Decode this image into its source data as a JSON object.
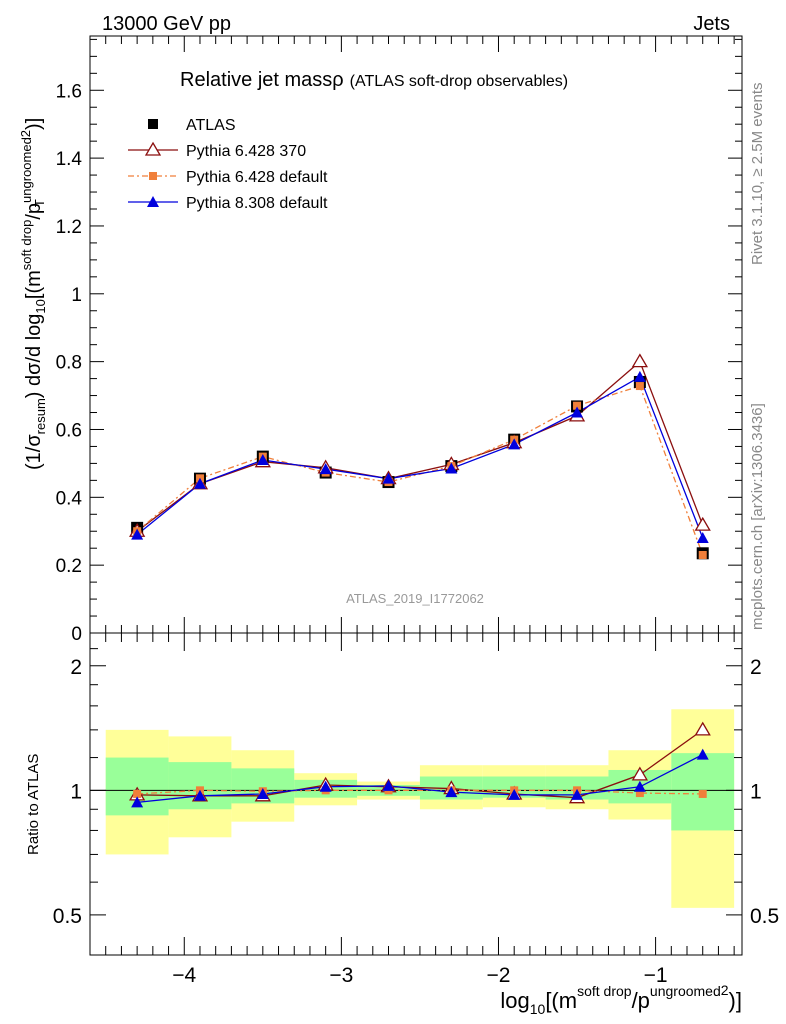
{
  "header": {
    "left": "13000 GeV pp",
    "right": "Jets"
  },
  "side_labels": {
    "rivet": "Rivet 3.1.10, ≥ 2.5M events",
    "mcplots": "mcplots.cern.ch [arXiv:1306.3436]"
  },
  "analysis_id": "ATLAS_2019_I1772062",
  "colors": {
    "atlas": "#000000",
    "py6_370": "#8b0f0f",
    "py6_default": "#f07f3a",
    "py8": "#0000dd",
    "band_yellow": "#ffff99",
    "band_green": "#99ff99"
  },
  "chart_data": [
    {
      "type": "line",
      "title": "Relative jet massρ",
      "subtitle": "(ATLAS soft-drop observables)",
      "ylabel": "(1/σresum) dσ/d log10[(m soft drop/pT ungroomed)2]",
      "xlim": [
        -4.6,
        -0.45
      ],
      "ylim": [
        0,
        1.76
      ],
      "x_ticks": [
        -4,
        -3,
        -2,
        -1
      ],
      "y_ticks": [
        0,
        0.2,
        0.4,
        0.6,
        0.8,
        1,
        1.2,
        1.4,
        1.6
      ],
      "y_tick_labels": [
        "0",
        "0.2",
        "0.4",
        "0.6",
        "0.8",
        "1",
        "1.2",
        "1.4",
        "1.6"
      ],
      "x": [
        -4.3,
        -3.9,
        -3.5,
        -3.1,
        -2.7,
        -2.3,
        -1.9,
        -1.5,
        -1.1,
        -0.7
      ],
      "legend_position": "top-left",
      "series": [
        {
          "name": "ATLAS",
          "values": [
            0.31,
            0.455,
            0.52,
            0.473,
            0.445,
            0.492,
            0.57,
            0.668,
            0.74,
            0.235
          ]
        },
        {
          "name": "Pythia 6.428 370",
          "values": [
            0.3,
            0.44,
            0.505,
            0.487,
            0.455,
            0.497,
            0.561,
            0.64,
            0.8,
            0.318
          ]
        },
        {
          "name": "Pythia 6.428 default",
          "values": [
            0.3,
            0.456,
            0.52,
            0.473,
            0.445,
            0.492,
            0.57,
            0.67,
            0.728,
            0.23
          ]
        },
        {
          "name": "Pythia 8.308 default",
          "values": [
            0.29,
            0.44,
            0.51,
            0.483,
            0.455,
            0.485,
            0.556,
            0.65,
            0.755,
            0.28
          ]
        }
      ]
    },
    {
      "type": "line",
      "ylabel": "Ratio to ATLAS",
      "xlabel": "log10[(m soft drop/pT ungroomed)2]",
      "xlim": [
        -4.6,
        -0.45
      ],
      "ylim": [
        0.4,
        2.4
      ],
      "y_scale": "log",
      "x_ticks": [
        -4,
        -3,
        -2,
        -1
      ],
      "x_tick_labels": [
        "−4",
        "−3",
        "−2",
        "−1"
      ],
      "y_ticks": [
        0.5,
        1,
        2
      ],
      "y_tick_labels": [
        "0.5",
        "1",
        "2"
      ],
      "reference_line": 1,
      "x": [
        -4.3,
        -3.9,
        -3.5,
        -3.1,
        -2.7,
        -2.3,
        -1.9,
        -1.5,
        -1.1,
        -0.7
      ],
      "bands": {
        "edges": [
          -4.5,
          -4.1,
          -3.7,
          -3.3,
          -2.9,
          -2.5,
          -2.1,
          -1.7,
          -1.3,
          -0.9,
          -0.5
        ],
        "yellow_lo": [
          0.7,
          0.77,
          0.84,
          0.92,
          0.95,
          0.9,
          0.91,
          0.9,
          0.85,
          0.52
        ],
        "yellow_hi": [
          1.4,
          1.35,
          1.25,
          1.1,
          1.05,
          1.15,
          1.15,
          1.15,
          1.25,
          1.57
        ],
        "green_lo": [
          0.87,
          0.9,
          0.93,
          0.96,
          0.97,
          0.95,
          0.96,
          0.95,
          0.93,
          0.8
        ],
        "green_hi": [
          1.2,
          1.17,
          1.13,
          1.06,
          1.03,
          1.08,
          1.08,
          1.08,
          1.12,
          1.23
        ]
      },
      "series": [
        {
          "name": "Pythia 6.428 370",
          "values": [
            0.975,
            0.97,
            0.97,
            1.03,
            1.02,
            1.01,
            0.98,
            0.96,
            1.09,
            1.4
          ]
        },
        {
          "name": "Pythia 6.428 default",
          "values": [
            0.98,
            1.0,
            0.995,
            1.0,
            1.0,
            1.0,
            1.0,
            1.0,
            0.985,
            0.98
          ]
        },
        {
          "name": "Pythia 8.308 default",
          "values": [
            0.935,
            0.97,
            0.98,
            1.02,
            1.025,
            0.99,
            0.975,
            0.975,
            1.02,
            1.22
          ]
        }
      ]
    }
  ]
}
